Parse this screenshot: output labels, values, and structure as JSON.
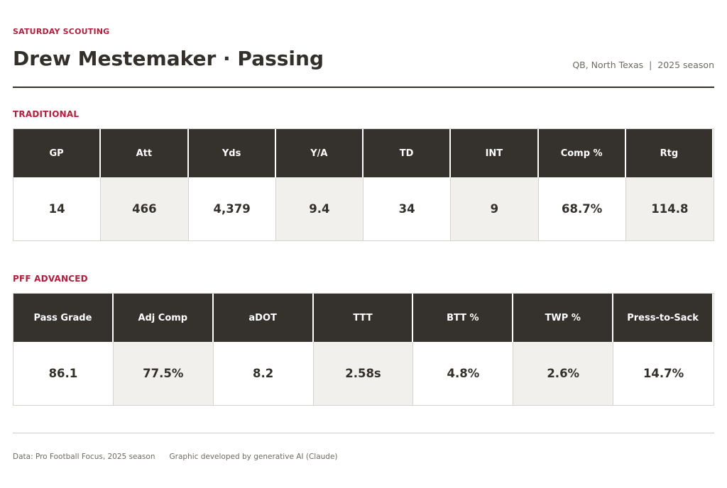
{
  "header": {
    "kicker": "SATURDAY SCOUTING",
    "title": "Drew Mestemaker · Passing",
    "subtitle": "QB, North Texas  |  2025 season"
  },
  "colors": {
    "accent": "#b0203e",
    "header_bg": "#35312d",
    "shade_bg": "#f1f0ed",
    "text": "#33302c"
  },
  "traditional": {
    "label": "TRADITIONAL",
    "columns": [
      {
        "header": "GP",
        "value": "14"
      },
      {
        "header": "Att",
        "value": "466"
      },
      {
        "header": "Yds",
        "value": "4,379"
      },
      {
        "header": "Y/A",
        "value": "9.4"
      },
      {
        "header": "TD",
        "value": "34"
      },
      {
        "header": "INT",
        "value": "9"
      },
      {
        "header": "Comp %",
        "value": "68.7%"
      },
      {
        "header": "Rtg",
        "value": "114.8"
      }
    ]
  },
  "advanced": {
    "label": "PFF ADVANCED",
    "columns": [
      {
        "header": "Pass Grade",
        "value": "86.1"
      },
      {
        "header": "Adj Comp",
        "value": "77.5%"
      },
      {
        "header": "aDOT",
        "value": "8.2"
      },
      {
        "header": "TTT",
        "value": "2.58s"
      },
      {
        "header": "BTT %",
        "value": "4.8%"
      },
      {
        "header": "TWP %",
        "value": "2.6%"
      },
      {
        "header": "Press-to-Sack",
        "value": "14.7%"
      }
    ]
  },
  "footer": {
    "source": "Data: Pro Football Focus, 2025 season",
    "credit": "Graphic developed by generative AI (Claude)"
  }
}
